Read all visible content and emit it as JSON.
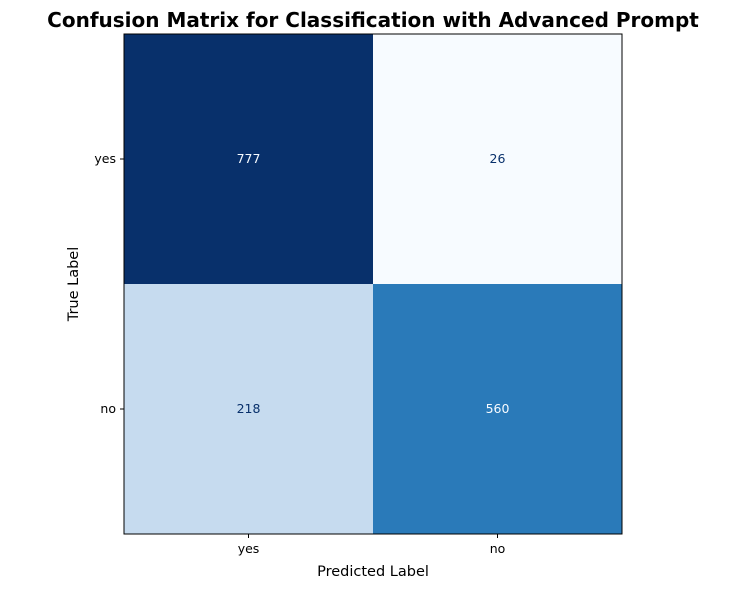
{
  "chart_data": {
    "type": "heatmap",
    "title": "Confusion Matrix for Classification with Advanced Prompt",
    "xlabel": "Predicted Label",
    "ylabel": "True Label",
    "x_categories": [
      "yes",
      "no"
    ],
    "y_categories": [
      "yes",
      "no"
    ],
    "values": [
      [
        777,
        26
      ],
      [
        218,
        560
      ]
    ],
    "colormap": "Blues",
    "colorbar": false,
    "grid": false
  },
  "colors": {
    "cells": [
      [
        "#08306b",
        "#f7fbff"
      ],
      [
        "#c6dbef",
        "#2a7ab9"
      ]
    ],
    "cell_text": [
      [
        "#f7fbff",
        "#08306b"
      ],
      [
        "#08306b",
        "#f7fbff"
      ]
    ],
    "frame": "#000000",
    "background": "#ffffff"
  }
}
